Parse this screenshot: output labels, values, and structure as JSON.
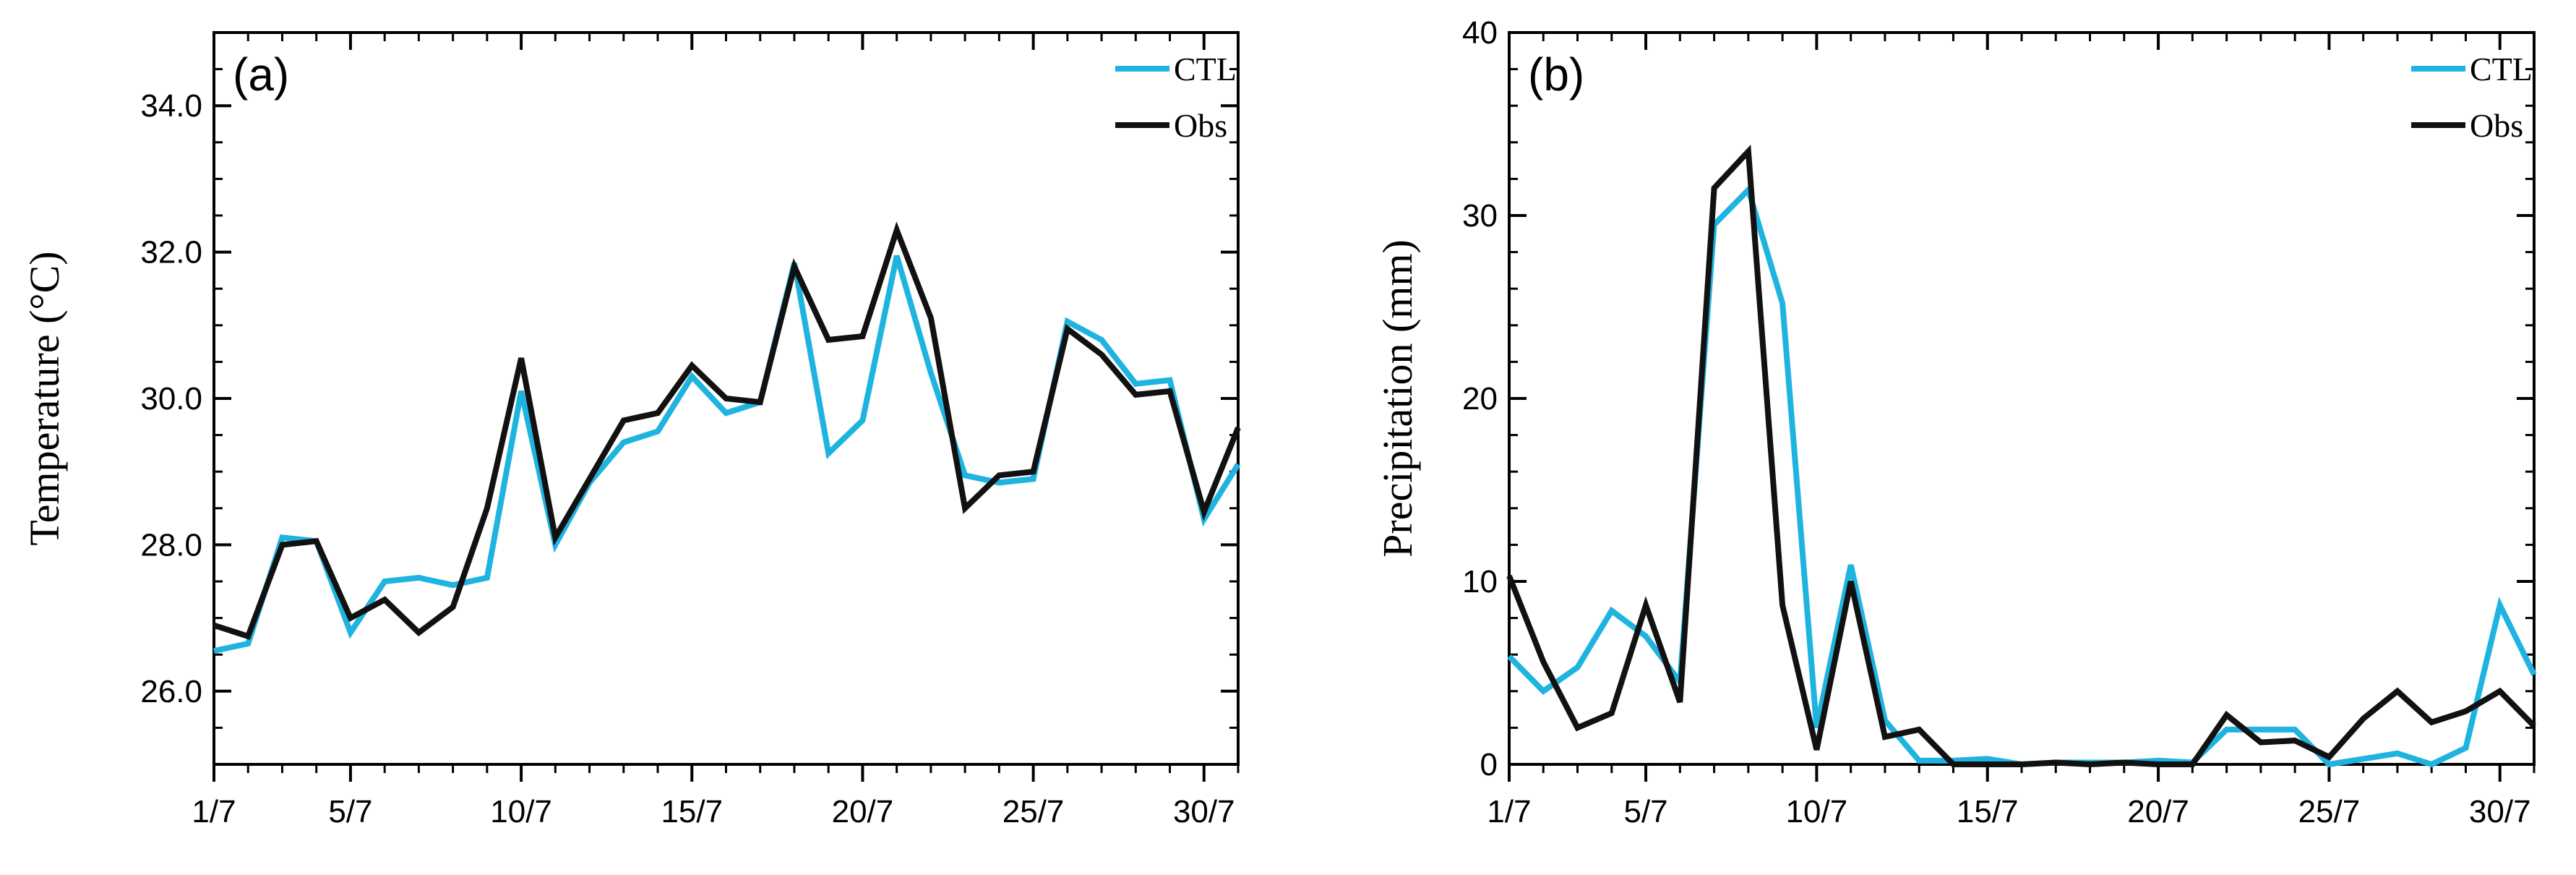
{
  "colors": {
    "ctl": "#1fb3e0",
    "obs": "#111111",
    "axis": "#000000"
  },
  "chart_data": [
    {
      "type": "line",
      "panel_label": "(a)",
      "xlabel": "",
      "ylabel": "Temperature (°C)",
      "x": [
        1,
        2,
        3,
        4,
        5,
        6,
        7,
        8,
        9,
        10,
        11,
        12,
        13,
        14,
        15,
        16,
        17,
        18,
        19,
        20,
        21,
        22,
        23,
        24,
        25,
        26,
        27,
        28,
        29,
        30,
        31
      ],
      "xlim": [
        1,
        31
      ],
      "xticks": [
        1,
        5,
        10,
        15,
        20,
        25,
        30
      ],
      "xtick_labels": [
        "1/7",
        "5/7",
        "10/7",
        "15/7",
        "20/7",
        "25/7",
        "30/7"
      ],
      "ylim": [
        25.0,
        35.0
      ],
      "yticks": [
        26,
        28,
        30,
        32,
        34
      ],
      "ytick_labels": [
        "26.0",
        "28.0",
        "30.0",
        "32.0",
        "34.0"
      ],
      "y_minor_step": 0.5,
      "legend_position": "top-right",
      "series": [
        {
          "name": "CTL",
          "color_key": "ctl",
          "values": [
            26.55,
            26.65,
            28.1,
            28.05,
            26.8,
            27.5,
            27.55,
            27.45,
            27.55,
            30.1,
            28.0,
            28.85,
            29.4,
            29.55,
            30.3,
            29.8,
            29.95,
            31.85,
            29.25,
            29.7,
            31.95,
            30.35,
            28.95,
            28.85,
            28.9,
            31.05,
            30.8,
            30.2,
            30.25,
            28.35,
            29.1
          ]
        },
        {
          "name": "Obs",
          "color_key": "obs",
          "values": [
            26.9,
            26.75,
            28.0,
            28.05,
            27.0,
            27.25,
            26.8,
            27.15,
            28.5,
            30.55,
            28.1,
            28.9,
            29.7,
            29.8,
            30.45,
            30.0,
            29.95,
            31.8,
            30.8,
            30.85,
            32.3,
            31.1,
            28.5,
            28.95,
            29.0,
            30.95,
            30.6,
            30.05,
            30.1,
            28.45,
            29.6
          ]
        }
      ]
    },
    {
      "type": "line",
      "panel_label": "(b)",
      "xlabel": "",
      "ylabel": "Precipitation (mm)",
      "x": [
        1,
        2,
        3,
        4,
        5,
        6,
        7,
        8,
        9,
        10,
        11,
        12,
        13,
        14,
        15,
        16,
        17,
        18,
        19,
        20,
        21,
        22,
        23,
        24,
        25,
        26,
        27,
        28,
        29,
        30,
        31
      ],
      "xlim": [
        1,
        31
      ],
      "xticks": [
        1,
        5,
        10,
        15,
        20,
        25,
        30
      ],
      "xtick_labels": [
        "1/7",
        "5/7",
        "10/7",
        "15/7",
        "20/7",
        "25/7",
        "30/7"
      ],
      "ylim": [
        0,
        40
      ],
      "yticks": [
        0,
        10,
        20,
        30,
        40
      ],
      "ytick_labels": [
        "0",
        "10",
        "20",
        "30",
        "40"
      ],
      "y_minor_step": 2,
      "legend_position": "top-right",
      "series": [
        {
          "name": "CTL",
          "color_key": "ctl",
          "values": [
            5.9,
            4.0,
            5.3,
            8.4,
            7.0,
            4.5,
            29.5,
            31.4,
            25.2,
            2.0,
            10.9,
            2.4,
            0.2,
            0.2,
            0.3,
            0.0,
            0.1,
            0.1,
            0.1,
            0.2,
            0.1,
            1.9,
            1.9,
            1.9,
            0.0,
            0.3,
            0.6,
            0.0,
            0.9,
            8.7,
            4.9
          ]
        },
        {
          "name": "Obs",
          "color_key": "obs",
          "values": [
            10.3,
            5.6,
            2.0,
            2.8,
            8.7,
            3.4,
            31.5,
            33.5,
            8.7,
            0.8,
            10.0,
            1.5,
            1.9,
            0.0,
            0.0,
            0.0,
            0.1,
            0.0,
            0.1,
            0.0,
            0.0,
            2.7,
            1.2,
            1.3,
            0.4,
            2.5,
            4.0,
            2.3,
            2.9,
            4.0,
            2.1
          ]
        }
      ]
    }
  ]
}
